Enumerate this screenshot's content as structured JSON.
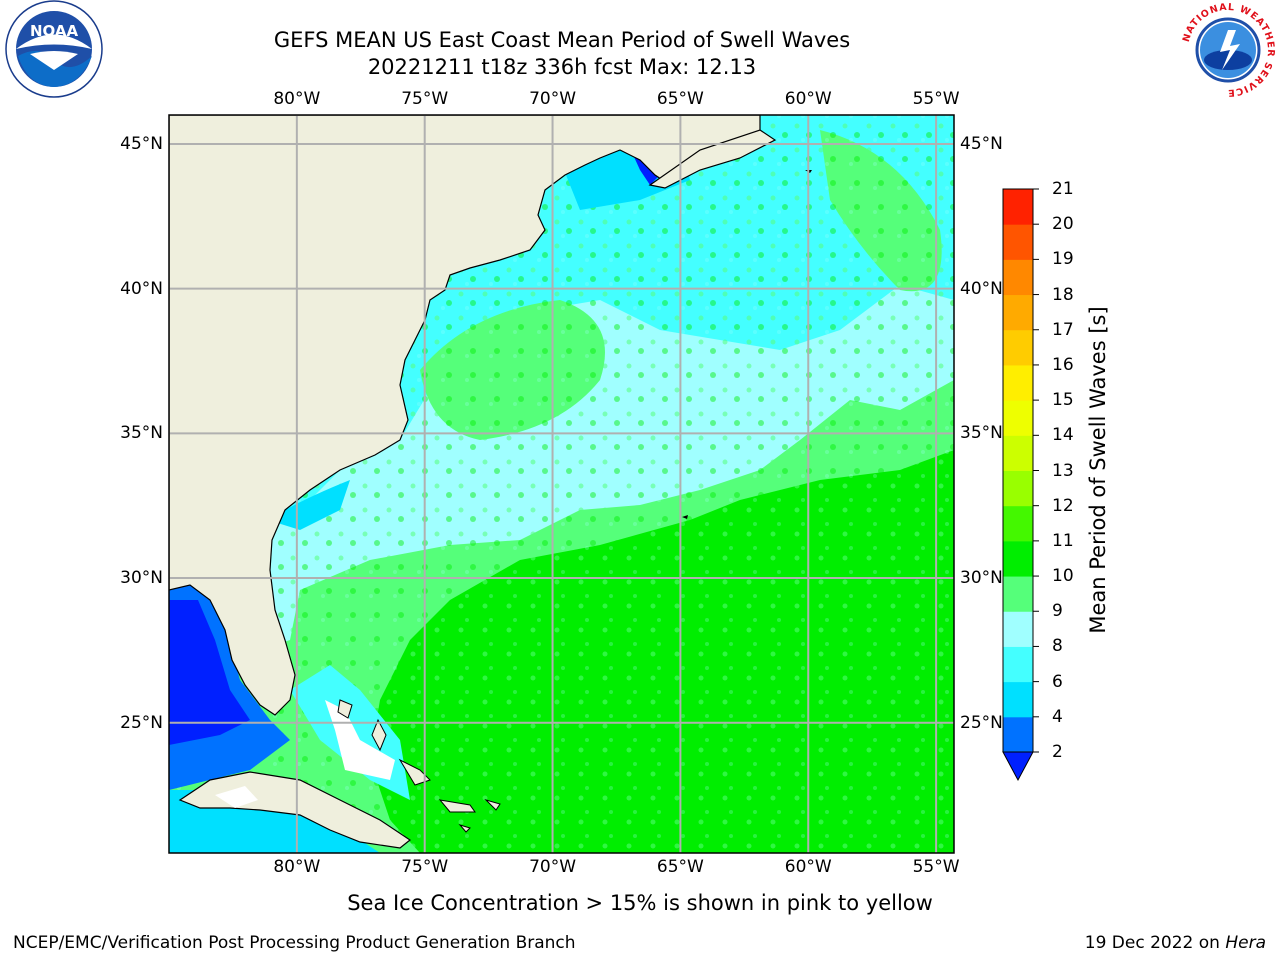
{
  "header": {
    "title_line1": "GEFS MEAN US East Coast Mean Period of Swell Waves",
    "title_line2": "20221211 t18z 336h fcst   Max: 12.13"
  },
  "logos": {
    "left": {
      "text": "NOAA",
      "ring_text": "NATIONAL OCEANIC AND ATMOSPHERIC ADMINISTRATION · U.S. DEPARTMENT OF COMMERCE"
    },
    "right": {
      "ring_text": "NATIONAL WEATHER SERVICE"
    }
  },
  "map": {
    "lon_ticks": [
      "80°W",
      "75°W",
      "70°W",
      "65°W",
      "60°W",
      "55°W"
    ],
    "lat_ticks": [
      "45°N",
      "40°N",
      "35°N",
      "30°N",
      "25°N"
    ],
    "lon_range": [
      -85,
      -54.3
    ],
    "lat_range": [
      20.5,
      46
    ],
    "colors": {
      "land": "#efefdd",
      "grid": "#b0b0b0",
      "coast": "#000000"
    }
  },
  "colorbar": {
    "label": "Mean Period of Swell Waves [s]",
    "ticks": [
      "2",
      "4",
      "6",
      "8",
      "9",
      "10",
      "11",
      "12",
      "13",
      "14",
      "15",
      "16",
      "17",
      "18",
      "19",
      "20",
      "21"
    ],
    "colors": [
      "#0072ff",
      "#00e0ff",
      "#44ffff",
      "#a0ffff",
      "#55ff7a",
      "#00ee00",
      "#44f800",
      "#99ff00",
      "#ccff00",
      "#eeff00",
      "#ffee00",
      "#ffcc00",
      "#ffaa00",
      "#ff8800",
      "#ff5500",
      "#ff2200",
      "#ff0000"
    ],
    "under_color": "#0020ff"
  },
  "caption": "Sea Ice Concentration > 15% is shown in pink to yellow",
  "footer": {
    "left": "NCEP/EMC/Verification Post Processing Product Generation Branch",
    "right_prefix": "19 Dec 2022 on ",
    "right_host": "Hera"
  }
}
